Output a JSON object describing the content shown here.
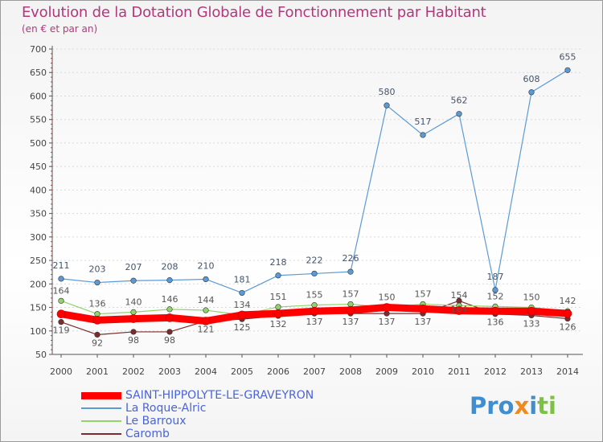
{
  "header": {
    "title": "Evolution de la Dotation Globale de Fonctionnement par Habitant",
    "subtitle": "(en € et par an)"
  },
  "logo": {
    "parts": [
      "Pro",
      "x",
      "i",
      "ti"
    ]
  },
  "colors": {
    "title": "#b0397a",
    "axis": "#555555",
    "legend_text": "#4a64d8",
    "logo_blue": "#3f8fd0",
    "logo_orange": "#f08a1c",
    "logo_green": "#7cc242"
  },
  "chart_data": {
    "type": "line",
    "title": "Evolution de la Dotation Globale de Fonctionnement par Habitant",
    "ylabel": "(en € et par an)",
    "xlabel": "",
    "ylim": [
      50,
      700
    ],
    "y_ticks": [
      50,
      100,
      150,
      200,
      250,
      300,
      350,
      400,
      450,
      500,
      550,
      600,
      650,
      700
    ],
    "x": [
      "2000",
      "2001",
      "2002",
      "2003",
      "2004",
      "2005",
      "2006",
      "2007",
      "2008",
      "2009",
      "2010",
      "2011",
      "2012",
      "2013",
      "2014"
    ],
    "grid": true,
    "legend_position": "bottom-left",
    "series": [
      {
        "name": "SAINT-HIPPOLYTE-LE-GRAVEYRON",
        "color": "#ff0000",
        "values": [
          136,
          123,
          126,
          128,
          121,
          134,
          137,
          142,
          144,
          150,
          147,
          143,
          142,
          142,
          137
        ],
        "show_labels": false
      },
      {
        "name": "La Roque-Alric",
        "color": "#5b9bd5",
        "values": [
          211,
          203,
          207,
          208,
          210,
          181,
          218,
          222,
          226,
          580,
          517,
          562,
          187,
          608,
          655
        ],
        "show_labels": true
      },
      {
        "name": "Le Barroux",
        "color": "#92d36e",
        "values": [
          164,
          136,
          140,
          146,
          144,
          134,
          151,
          155,
          157,
          150,
          157,
          154,
          152,
          150,
          142
        ],
        "show_labels": true
      },
      {
        "name": "Caromb",
        "color": "#7b2c2c",
        "values": [
          119,
          92,
          98,
          98,
          121,
          125,
          132,
          137,
          137,
          137,
          137,
          164,
          136,
          133,
          126
        ],
        "show_labels": true
      }
    ]
  }
}
